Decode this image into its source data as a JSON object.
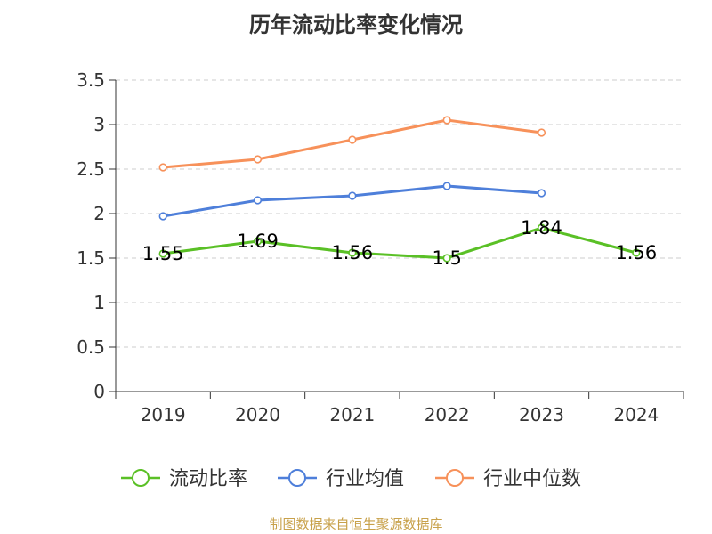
{
  "title": "历年流动比率变化情况",
  "source": "制图数据来自恒生聚源数据库",
  "colors": {
    "current_ratio": "#5ac026",
    "industry_avg": "#4e7fda",
    "industry_median": "#f7915a",
    "grid": "#cccccc",
    "axis": "#333333"
  },
  "chart_data": {
    "type": "line",
    "title": "历年流动比率变化情况",
    "categories": [
      "2019",
      "2020",
      "2021",
      "2022",
      "2023",
      "2024"
    ],
    "ylim": [
      0,
      3.5
    ],
    "yticks": [
      "0",
      "0.5",
      "1",
      "1.5",
      "2",
      "2.5",
      "3",
      "3.5"
    ],
    "grid": true,
    "legend_position": "bottom",
    "series": [
      {
        "name": "流动比率",
        "values": [
          1.55,
          1.69,
          1.56,
          1.5,
          1.84,
          1.56
        ],
        "labels": [
          "1.55",
          "1.69",
          "1.56",
          "1.5",
          "1.84",
          "1.56"
        ],
        "color": "#5ac026"
      },
      {
        "name": "行业均值",
        "values": [
          1.97,
          2.15,
          2.2,
          2.31,
          2.23,
          null
        ],
        "color": "#4e7fda"
      },
      {
        "name": "行业中位数",
        "values": [
          2.52,
          2.61,
          2.83,
          3.05,
          2.91,
          null
        ],
        "color": "#f7915a"
      }
    ]
  }
}
